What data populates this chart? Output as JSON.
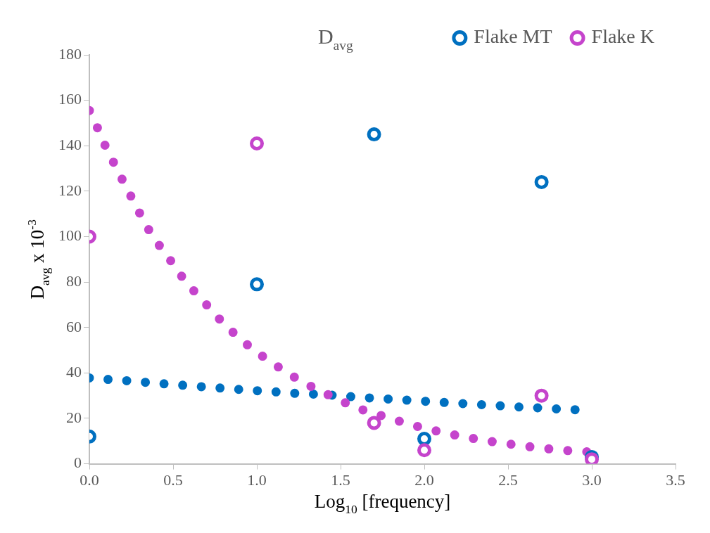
{
  "chart_data": {
    "type": "scatter",
    "title": "D$_{avg}$",
    "xlabel": "Log$_{10}$ [frequency]",
    "ylabel": "D$_{avg}$ x 10$^{-3}$",
    "xlim": [
      0,
      3.5
    ],
    "xticks": [
      {
        "value": 0,
        "label": "0.0"
      },
      0.5,
      {
        "value": 1,
        "label": "1.0"
      },
      1.5,
      {
        "value": 2,
        "label": "2.0"
      },
      2.5,
      {
        "value": 3,
        "label": "3.0"
      },
      3.5
    ],
    "ylim": [
      0,
      180
    ],
    "yticks": [
      0,
      20,
      40,
      60,
      80,
      100,
      120,
      140,
      160,
      180
    ],
    "grid": false,
    "legend": "top right",
    "marker": "circle",
    "series": [
      {
        "type": "line",
        "line_style": "dotted",
        "marker": "none",
        "color": "#0070c0",
        "x": [
          0,
          0.12,
          0.24,
          0.36,
          0.48,
          0.61,
          0.73,
          0.85,
          0.97,
          1.09,
          1.21,
          1.33,
          1.45,
          1.57,
          1.69,
          1.82,
          1.94,
          2.06,
          2.18,
          2.3,
          2.42,
          2.54,
          2.66,
          2.78,
          2.9
        ],
        "values": [
          37.8,
          37.1,
          36.5,
          35.7,
          35,
          34.3,
          33.6,
          33,
          32.3,
          31.8,
          31.1,
          30.7,
          30.2,
          29.5,
          28.9,
          28.4,
          27.8,
          27.3,
          26.7,
          26.2,
          25.7,
          25.1,
          24.7,
          24.2,
          23.8
        ]
      },
      {
        "type": "line",
        "line_style": "dotted",
        "marker": "none",
        "color": "#c544cc",
        "x": [
          0,
          0.05,
          0.09,
          0.14,
          0.19,
          0.24,
          0.29,
          0.34,
          0.4,
          0.47,
          0.53,
          0.6,
          0.68,
          0.75,
          0.83,
          0.91,
          1,
          1.1,
          1.19,
          1.29,
          1.4,
          1.5,
          1.6,
          1.71,
          1.83,
          1.94,
          2.05,
          2.16,
          2.28,
          2.39,
          2.51,
          2.62,
          2.74,
          2.86,
          2.97
        ],
        "values": [
          155.5,
          147.6,
          140.7,
          133.3,
          126,
          118.9,
          111.8,
          104.7,
          97.8,
          91.1,
          84.5,
          78,
          71.7,
          65.7,
          59.8,
          54.3,
          49.1,
          44,
          39.6,
          35.3,
          31.3,
          27.8,
          24.5,
          22,
          19.2,
          16.8,
          14.8,
          13,
          11.3,
          9.9,
          8.7,
          7.6,
          6.6,
          5.8,
          5.3
        ]
      },
      {
        "name": "Flake MT",
        "color": "#0070c0",
        "x": [
          0,
          1,
          1.7,
          2,
          2.7,
          3
        ],
        "values": [
          12,
          79,
          145,
          11,
          124,
          3
        ]
      },
      {
        "name": "Flake K",
        "color": "#c544cc",
        "x": [
          0,
          1,
          1.7,
          2,
          2.7,
          3
        ],
        "values": [
          100,
          141,
          18,
          6,
          30,
          2
        ]
      }
    ]
  }
}
